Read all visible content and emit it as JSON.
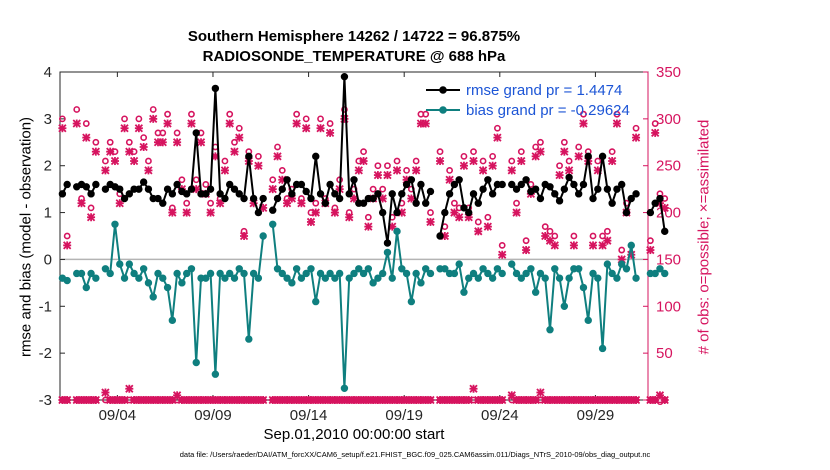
{
  "chart_data": {
    "type": "line",
    "title_line1": "Southern Hemisphere 14262 / 14722 = 96.875%",
    "title_line2": "RADIOSONDE_TEMPERATURE @ 688 hPa",
    "xlabel": "Sep.01,2010 00:00:00 start",
    "ylabel_left": "rmse and bias (model - observation)",
    "ylabel_right": "# of obs: o=possible; ×=assimilated",
    "footnote": "data file: /Users/raeder/DAI/ATM_forcXX/CAM6_setup/f.e21.FHIST_BGC.f09_025.CAM6assim.011/Diags_NTrS_2010-09/obs_diag_output.nc",
    "xlim": [
      0,
      30.75
    ],
    "ylim_left": [
      -3,
      4
    ],
    "ylim_right": [
      0,
      350
    ],
    "x_ticks": [
      {
        "value": 3,
        "label": "09/04"
      },
      {
        "value": 8,
        "label": "09/09"
      },
      {
        "value": 13,
        "label": "09/14"
      },
      {
        "value": 18,
        "label": "09/19"
      },
      {
        "value": 23,
        "label": "09/24"
      },
      {
        "value": 28,
        "label": "09/29"
      }
    ],
    "y_ticks_left": [
      -3,
      -2,
      -1,
      0,
      1,
      2,
      3,
      4
    ],
    "y_ticks_right": [
      0,
      50,
      100,
      150,
      200,
      250,
      300,
      350
    ],
    "x_step_days": 0.25,
    "legend": [
      {
        "label": "rmse grand pr = 1.4474",
        "color": "#000000"
      },
      {
        "label": "bias grand pr = -0.29624",
        "color": "#0f7f7f"
      }
    ],
    "colors": {
      "rmse": "#000000",
      "bias": "#0f7f7f",
      "obs": "#d6145f",
      "legend_text": "#1c55d6",
      "zero_line": "#b4b4b4"
    },
    "series": [
      {
        "name": "rmse",
        "axis": "left",
        "values": [
          1.4,
          1.6,
          null,
          1.55,
          1.6,
          1.55,
          1.4,
          1.6,
          null,
          1.5,
          1.6,
          1.55,
          1.5,
          1.3,
          1.4,
          1.5,
          1.5,
          1.65,
          1.5,
          1.3,
          1.3,
          1.2,
          1.5,
          1.4,
          1.6,
          1.45,
          1.4,
          1.5,
          2.7,
          1.4,
          1.4,
          1.5,
          3.65,
          1.4,
          1.3,
          1.6,
          1.5,
          1.4,
          1.3,
          2.2,
          1.3,
          1.0,
          1.3,
          null,
          1.05,
          1.3,
          1.5,
          1.7,
          1.4,
          1.6,
          1.6,
          1.45,
          1.3,
          2.2,
          1.4,
          1.2,
          1.6,
          1.4,
          1.3,
          3.9,
          1.4,
          1.7,
          1.2,
          1.2,
          1.3,
          1.3,
          1.4,
          1.0,
          0.35,
          1.4,
          1.0,
          1.4,
          1.6,
          1.7,
          1.2,
          1.6,
          1.2,
          1.45,
          null,
          0.5,
          1.0,
          1.4,
          1.6,
          1.7,
          1.1,
          1.0,
          1.4,
          1.2,
          1.5,
          1.7,
          1.4,
          1.6,
          1.6,
          null,
          1.6,
          1.5,
          1.6,
          1.7,
          1.45,
          1.5,
          1.3,
          1.6,
          1.55,
          1.4,
          1.25,
          1.5,
          1.75,
          1.6,
          1.4,
          1.6,
          2.2,
          1.3,
          1.5,
          2.2,
          1.5,
          1.2,
          1.5,
          1.6,
          1.0,
          1.3,
          1.4,
          null,
          null,
          1.0,
          1.2,
          1.3,
          0.6
        ]
      },
      {
        "name": "bias",
        "axis": "left",
        "values": [
          -0.4,
          -0.45,
          null,
          -0.3,
          -0.3,
          -0.6,
          -0.3,
          -0.4,
          null,
          -0.2,
          -0.3,
          0.75,
          -0.1,
          -0.4,
          -0.1,
          -0.3,
          -0.4,
          -0.2,
          -0.5,
          -0.8,
          -0.3,
          -0.4,
          -0.6,
          -1.3,
          -0.3,
          -0.5,
          -0.3,
          -0.2,
          -2.2,
          -0.4,
          -0.4,
          -0.3,
          -2.45,
          -0.3,
          -0.4,
          -0.3,
          -0.4,
          -0.2,
          -0.3,
          -1.7,
          -0.3,
          -0.4,
          0.5,
          null,
          0.75,
          -0.2,
          -0.3,
          -0.4,
          -0.5,
          -0.2,
          -0.4,
          -0.3,
          -0.2,
          -0.9,
          -0.3,
          -0.4,
          -0.3,
          -0.4,
          -0.3,
          -2.75,
          -0.4,
          -0.3,
          -0.2,
          -0.3,
          -0.2,
          -0.5,
          -0.4,
          -0.3,
          0.15,
          -0.4,
          0.6,
          -0.2,
          -0.3,
          -0.9,
          -0.3,
          -0.5,
          -0.2,
          -0.3,
          null,
          -0.2,
          -0.2,
          -0.3,
          -0.3,
          -0.1,
          -0.7,
          -0.4,
          -0.3,
          -0.4,
          -0.2,
          -0.3,
          -0.4,
          -0.2,
          -0.3,
          null,
          -0.1,
          -0.3,
          -0.4,
          -0.3,
          -0.2,
          -0.7,
          -0.3,
          -0.4,
          -1.5,
          -0.2,
          -0.4,
          -1.0,
          -0.4,
          -0.2,
          -0.2,
          -0.6,
          -1.3,
          -0.3,
          -0.4,
          -1.9,
          -0.1,
          -0.3,
          -0.4,
          -0.1,
          -0.2,
          0.3,
          -0.4,
          null,
          null,
          -0.3,
          -0.3,
          -0.2,
          -0.3
        ]
      },
      {
        "name": "obs possible",
        "axis": "right",
        "marker": "o",
        "values": [
          300,
          175,
          null,
          310,
          215,
          295,
          205,
          275,
          null,
          255,
          275,
          265,
          220,
          300,
          275,
          265,
          300,
          280,
          255,
          310,
          285,
          285,
          305,
          205,
          285,
          235,
          210,
          305,
          235,
          285,
          230,
          210,
          270,
          215,
          255,
          305,
          275,
          290,
          180,
          265,
          215,
          260,
          215,
          null,
          235,
          270,
          245,
          215,
          225,
          305,
          215,
          300,
          200,
          210,
          300,
          215,
          295,
          205,
          235,
          310,
          200,
          225,
          255,
          265,
          195,
          225,
          250,
          225,
          250,
          195,
          255,
          210,
          245,
          225,
          255,
          305,
          305,
          200,
          null,
          265,
          185,
          245,
          210,
          205,
          260,
          205,
          265,
          190,
          255,
          195,
          260,
          290,
          165,
          null,
          255,
          210,
          265,
          170,
          230,
          270,
          275,
          185,
          180,
          175,
          250,
          275,
          255,
          175,
          270,
          305,
          265,
          175,
          255,
          175,
          180,
          265,
          305,
          160,
          210,
          165,
          290,
          null,
          null,
          170,
          295,
          220,
          215
        ]
      },
      {
        "name": "obs assimilated",
        "axis": "right",
        "marker": "x",
        "values": [
          290,
          165,
          null,
          295,
          210,
          280,
          195,
          265,
          null,
          245,
          265,
          255,
          210,
          290,
          265,
          255,
          290,
          270,
          245,
          300,
          275,
          275,
          295,
          200,
          275,
          225,
          200,
          295,
          225,
          275,
          220,
          200,
          260,
          210,
          245,
          295,
          265,
          280,
          175,
          255,
          210,
          250,
          205,
          null,
          225,
          260,
          235,
          210,
          215,
          295,
          210,
          290,
          190,
          200,
          290,
          210,
          285,
          200,
          225,
          300,
          195,
          215,
          245,
          255,
          185,
          215,
          240,
          215,
          240,
          185,
          245,
          200,
          235,
          215,
          245,
          295,
          295,
          190,
          null,
          255,
          175,
          235,
          200,
          195,
          250,
          195,
          255,
          180,
          245,
          185,
          250,
          280,
          155,
          null,
          245,
          200,
          255,
          160,
          220,
          260,
          265,
          175,
          170,
          165,
          240,
          265,
          245,
          165,
          260,
          295,
          255,
          165,
          245,
          165,
          170,
          255,
          295,
          150,
          200,
          155,
          280,
          null,
          null,
          160,
          285,
          210,
          205
        ]
      },
      {
        "name": "obs possible rejected band",
        "axis": "right",
        "marker": "o",
        "values": [
          0,
          0,
          null,
          0,
          0,
          0,
          0,
          0,
          null,
          0,
          0,
          0,
          0,
          0,
          0,
          0,
          0,
          0,
          0,
          0,
          0,
          0,
          0,
          0,
          0,
          0,
          0,
          0,
          0,
          0,
          0,
          0,
          0,
          0,
          0,
          0,
          0,
          0,
          0,
          0,
          0,
          0,
          0,
          null,
          0,
          0,
          0,
          0,
          0,
          0,
          0,
          0,
          0,
          0,
          0,
          0,
          0,
          0,
          0,
          0,
          0,
          0,
          0,
          0,
          0,
          0,
          0,
          0,
          0,
          0,
          0,
          0,
          0,
          0,
          0,
          0,
          0,
          0,
          null,
          0,
          0,
          0,
          0,
          0,
          0,
          0,
          0,
          0,
          0,
          0,
          0,
          0,
          0,
          null,
          0,
          0,
          0,
          0,
          0,
          0,
          0,
          0,
          0,
          0,
          0,
          0,
          0,
          0,
          0,
          0,
          0,
          0,
          0,
          0,
          0,
          0,
          0,
          0,
          0,
          0,
          0,
          null,
          null,
          0,
          0,
          0,
          0
        ]
      },
      {
        "name": "obs assimilated rejected band",
        "axis": "right",
        "marker": "x",
        "values": [
          0,
          0,
          null,
          0,
          0,
          0,
          0,
          0,
          null,
          8,
          0,
          0,
          0,
          0,
          12,
          0,
          0,
          0,
          0,
          0,
          0,
          0,
          0,
          0,
          5,
          0,
          0,
          0,
          0,
          0,
          0,
          0,
          0,
          0,
          0,
          0,
          0,
          0,
          0,
          0,
          0,
          0,
          0,
          null,
          0,
          0,
          0,
          0,
          0,
          0,
          0,
          0,
          0,
          0,
          0,
          0,
          0,
          0,
          0,
          0,
          0,
          0,
          0,
          0,
          0,
          0,
          0,
          0,
          0,
          0,
          0,
          0,
          0,
          0,
          0,
          0,
          0,
          0,
          null,
          0,
          0,
          0,
          0,
          0,
          0,
          0,
          12,
          0,
          0,
          0,
          0,
          0,
          0,
          null,
          5,
          0,
          0,
          0,
          0,
          0,
          8,
          0,
          0,
          0,
          0,
          0,
          0,
          0,
          0,
          0,
          0,
          0,
          0,
          0,
          0,
          0,
          0,
          0,
          0,
          0,
          0,
          null,
          null,
          0,
          0,
          5,
          0
        ]
      }
    ]
  }
}
